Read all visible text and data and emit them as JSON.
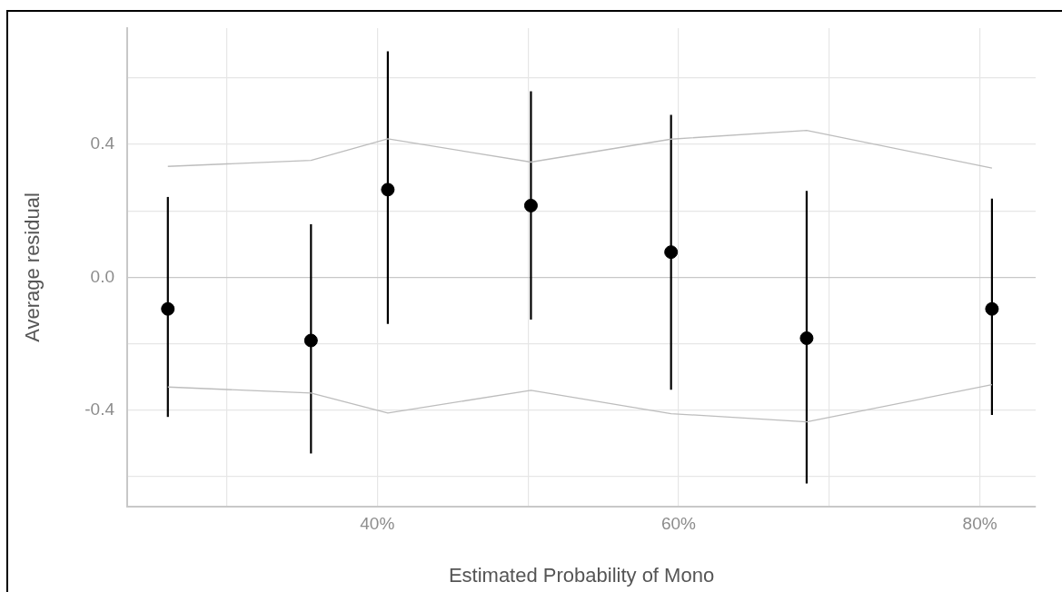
{
  "chart_data": {
    "type": "scatter",
    "xlabel": "Estimated Probability of Mono",
    "ylabel": "Average residual",
    "xlim": [
      23.4,
      83.7
    ],
    "ylim": [
      -0.69,
      0.75
    ],
    "xticks": [
      {
        "value": 30,
        "label": null
      },
      {
        "value": 40,
        "label": "40%"
      },
      {
        "value": 50,
        "label": null
      },
      {
        "value": 60,
        "label": "60%"
      },
      {
        "value": 70,
        "label": null
      },
      {
        "value": 80,
        "label": "80%"
      }
    ],
    "yticks": [
      {
        "value": -0.6,
        "label": null
      },
      {
        "value": -0.4,
        "label": "-0.4"
      },
      {
        "value": -0.2,
        "label": null
      },
      {
        "value": 0,
        "label": "0.0"
      },
      {
        "value": 0.2,
        "label": null
      },
      {
        "value": 0.4,
        "label": "0.4"
      },
      {
        "value": 0.6,
        "label": null
      }
    ],
    "grid": true,
    "legend": false,
    "series": [
      {
        "type": "line",
        "marker": "none",
        "color": "#bdbdbd",
        "x": [
          26.1,
          35.6,
          40.7,
          50.2,
          59.5,
          68.5,
          80.8
        ],
        "values": [
          0.334,
          0.352,
          0.417,
          0.347,
          0.416,
          0.442,
          0.329
        ]
      },
      {
        "type": "line",
        "marker": "none",
        "color": "#bdbdbd",
        "x": [
          26.1,
          35.6,
          40.7,
          50.2,
          59.5,
          68.5,
          80.8
        ],
        "values": [
          -0.33,
          -0.348,
          -0.408,
          -0.34,
          -0.41,
          -0.435,
          -0.323
        ]
      },
      {
        "type": "scatter",
        "marker": "circle",
        "color": "#000000",
        "x": [
          26.1,
          35.6,
          40.7,
          50.2,
          59.5,
          68.5,
          80.8
        ],
        "values": [
          -0.095,
          -0.19,
          0.264,
          0.216,
          0.076,
          -0.183,
          -0.095
        ],
        "errors": [
          [
            -0.42,
            0.242
          ],
          [
            -0.53,
            0.16
          ],
          [
            -0.14,
            0.68
          ],
          [
            -0.127,
            0.56
          ],
          [
            -0.338,
            0.489
          ],
          [
            -0.62,
            0.26
          ],
          [
            -0.414,
            0.237
          ]
        ]
      }
    ]
  }
}
